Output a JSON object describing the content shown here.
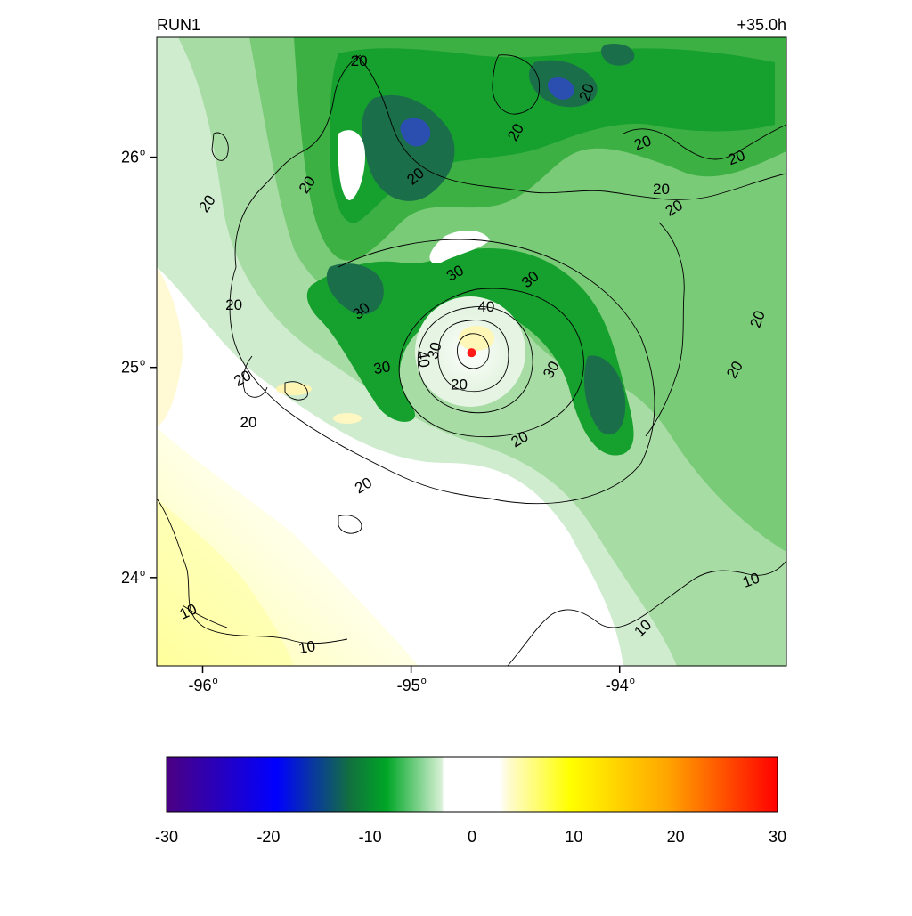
{
  "map": {
    "title_left": "RUN1",
    "title_right": "+35.0h",
    "lat_ticks": [
      {
        "deg": "26",
        "value": 26
      },
      {
        "deg": "25",
        "value": 25
      },
      {
        "deg": "24",
        "value": 24
      }
    ],
    "lon_ticks": [
      {
        "deg": "-96",
        "value": -96
      },
      {
        "deg": "-95",
        "value": -95
      },
      {
        "deg": "-94",
        "value": -94
      }
    ],
    "lon_range": [
      -96.22,
      -93.2
    ],
    "lat_range": [
      23.58,
      26.57
    ],
    "storm_center": {
      "lon": -94.71,
      "lat": 25.07,
      "color": "#ff1a1a"
    },
    "contour_labels": [
      {
        "text": "20",
        "lon": -95.98,
        "lat": 25.78,
        "rot": -55
      },
      {
        "text": "20",
        "lon": -95.5,
        "lat": 25.87,
        "rot": -55
      },
      {
        "text": "20",
        "lon": -95.25,
        "lat": 26.46,
        "rot": 0
      },
      {
        "text": "20",
        "lon": -94.98,
        "lat": 25.91,
        "rot": -40
      },
      {
        "text": "20",
        "lon": -94.5,
        "lat": 26.12,
        "rot": -60
      },
      {
        "text": "20",
        "lon": -94.16,
        "lat": 26.31,
        "rot": -70
      },
      {
        "text": "20",
        "lon": -93.89,
        "lat": 26.07,
        "rot": -20
      },
      {
        "text": "20",
        "lon": -93.8,
        "lat": 25.85,
        "rot": 0
      },
      {
        "text": "20",
        "lon": -93.74,
        "lat": 25.76,
        "rot": -30
      },
      {
        "text": "20",
        "lon": -93.44,
        "lat": 26.0,
        "rot": -20
      },
      {
        "text": "20",
        "lon": -93.34,
        "lat": 25.23,
        "rot": -70
      },
      {
        "text": "20",
        "lon": -93.45,
        "lat": 24.99,
        "rot": -60
      },
      {
        "text": "20",
        "lon": -95.85,
        "lat": 25.3,
        "rot": 0
      },
      {
        "text": "20",
        "lon": -95.81,
        "lat": 24.95,
        "rot": -30
      },
      {
        "text": "20",
        "lon": -95.78,
        "lat": 24.74,
        "rot": 0
      },
      {
        "text": "20",
        "lon": -95.23,
        "lat": 24.44,
        "rot": -30
      },
      {
        "text": "20",
        "lon": -94.77,
        "lat": 24.92,
        "rot": 0
      },
      {
        "text": "20",
        "lon": -94.48,
        "lat": 24.66,
        "rot": -30
      },
      {
        "text": "30",
        "lon": -94.79,
        "lat": 25.45,
        "rot": -30
      },
      {
        "text": "30",
        "lon": -94.43,
        "lat": 25.42,
        "rot": -40
      },
      {
        "text": "30",
        "lon": -95.24,
        "lat": 25.27,
        "rot": -40
      },
      {
        "text": "30",
        "lon": -95.14,
        "lat": 25.0,
        "rot": -10
      },
      {
        "text": "30",
        "lon": -94.33,
        "lat": 24.99,
        "rot": -60
      },
      {
        "text": "30",
        "lon": -94.89,
        "lat": 25.08,
        "rot": -75
      },
      {
        "text": "40",
        "lon": -94.64,
        "lat": 25.29,
        "rot": 0
      },
      {
        "text": "40",
        "lon": -94.94,
        "lat": 25.04,
        "rot": 80
      },
      {
        "text": "10",
        "lon": -93.37,
        "lat": 23.99,
        "rot": -20
      },
      {
        "text": "10",
        "lon": -93.89,
        "lat": 23.76,
        "rot": -45
      },
      {
        "text": "10",
        "lon": -96.07,
        "lat": 23.84,
        "rot": -25
      },
      {
        "text": "10",
        "lon": -95.5,
        "lat": 23.67,
        "rot": -10
      }
    ]
  },
  "colorbar": {
    "labels": [
      "-30",
      "-20",
      "-10",
      "0",
      "10",
      "20",
      "30"
    ],
    "range": [
      -30,
      30
    ],
    "stops": [
      "#4b0082",
      "#0000ff",
      "#0a8a3a",
      "#00aa22",
      "#d9f0d9",
      "#ffffff",
      "#ffff00",
      "#ffa500",
      "#ff0000"
    ]
  }
}
